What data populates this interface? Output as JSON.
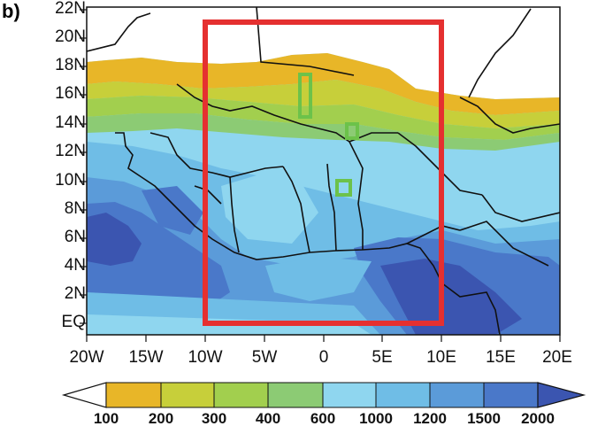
{
  "panel_label": "b)",
  "latitude_labels": [
    "22N",
    "20N",
    "18N",
    "16N",
    "14N",
    "12N",
    "10N",
    "8N",
    "6N",
    "4N",
    "2N",
    "EQ"
  ],
  "longitude_labels": [
    "20W",
    "15W",
    "10W",
    "5W",
    "0",
    "5E",
    "10E",
    "15E",
    "20E"
  ],
  "colorbar": {
    "labels": [
      "100",
      "200",
      "300",
      "400",
      "600",
      "1000",
      "1200",
      "1500",
      "2000"
    ],
    "colors": [
      "#e8b628",
      "#c7cf3a",
      "#a2cf4e",
      "#8ccb74",
      "#8fd6ef",
      "#6fbde6",
      "#5b9bd9",
      "#4a78c9",
      "#3b55b0"
    ],
    "ends": [
      "#ffffff",
      "#3b55b0"
    ]
  },
  "study_region_box": {
    "color": "#e53030",
    "lon": [
      -10,
      10
    ],
    "lat": [
      0,
      21
    ]
  },
  "site_boxes": {
    "color": "#6cc24a",
    "count": 3
  },
  "colors": {
    "coastline": "#111111",
    "ocean_deep": "#3b55b0"
  }
}
